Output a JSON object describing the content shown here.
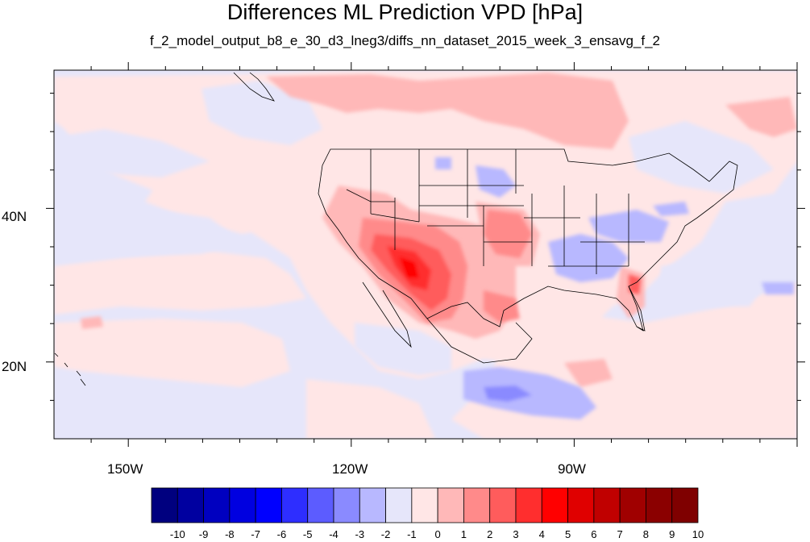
{
  "title": "Differences ML Prediction VPD [hPa]",
  "subtitle": "f_2_model_output_b8_e_30_d3_lneg3/diffs_nn_dataset_2015_week_3_ensavg_f_2",
  "map": {
    "lon_range": [
      -160,
      -60
    ],
    "lat_range": [
      10,
      58
    ],
    "x_ticks": [
      {
        "lon": -150,
        "label": "150W"
      },
      {
        "lon": -120,
        "label": "120W"
      },
      {
        "lon": -90,
        "label": "90W"
      }
    ],
    "y_ticks": [
      {
        "lat": 40,
        "label": "40N"
      },
      {
        "lat": 20,
        "label": "20N"
      }
    ],
    "background_color": "#e6e6fa"
  },
  "colorbar": {
    "colors": [
      "#00007f",
      "#0000a0",
      "#0000c0",
      "#0000e0",
      "#0000ff",
      "#2e2eff",
      "#5c5cff",
      "#8a8aff",
      "#b8b8ff",
      "#e6e6fa",
      "#ffe6e6",
      "#ffb8b8",
      "#ff8a8a",
      "#ff5c5c",
      "#ff2e2e",
      "#ff0000",
      "#e00000",
      "#c00000",
      "#a00000",
      "#8b0000",
      "#7f0000"
    ],
    "labels": [
      "-10",
      "-9",
      "-8",
      "-7",
      "-6",
      "-5",
      "-4",
      "-3",
      "-2",
      "-1",
      "0",
      "1",
      "2",
      "3",
      "4",
      "5",
      "6",
      "7",
      "8",
      "9",
      "10"
    ]
  }
}
